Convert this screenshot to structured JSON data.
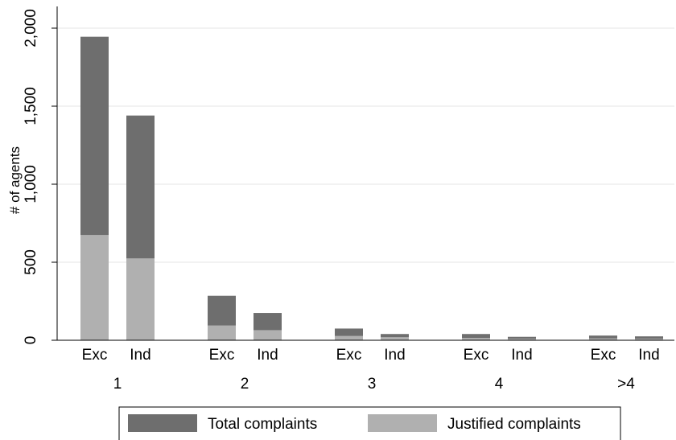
{
  "chart_data": {
    "type": "bar",
    "stacked": "overlay",
    "groups": [
      "1",
      "2",
      "3",
      "4",
      ">4"
    ],
    "subcategories": [
      "Exc",
      "Ind"
    ],
    "series": [
      {
        "name": "Total complaints",
        "color": "#6e6e6e",
        "values": [
          [
            1945,
            1440
          ],
          [
            285,
            175
          ],
          [
            75,
            40
          ],
          [
            40,
            22
          ],
          [
            30,
            25
          ]
        ]
      },
      {
        "name": "Justified complaints",
        "color": "#b0b0b0",
        "values": [
          [
            675,
            525
          ],
          [
            95,
            65
          ],
          [
            28,
            20
          ],
          [
            15,
            10
          ],
          [
            12,
            10
          ]
        ]
      }
    ],
    "ylabel": "# of agents",
    "yticks": [
      "0",
      "500",
      "1,000",
      "1,500",
      "2,000"
    ],
    "ylim": [
      0,
      2000
    ],
    "grid": true,
    "legend_position": "bottom"
  }
}
